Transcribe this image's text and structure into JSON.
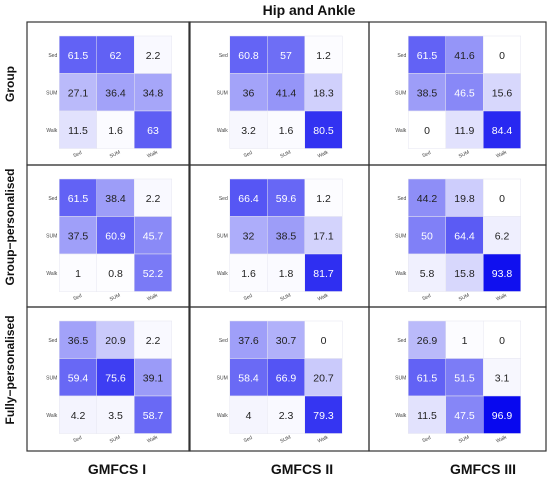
{
  "title": "Hip and Ankle",
  "row_labels": [
    "Group",
    "Group−personalised",
    "Fully−personalised"
  ],
  "col_labels": [
    "GMFCS I",
    "GMFCS II",
    "GMFCS III"
  ],
  "colors": {
    "low": "#ffffff",
    "high": "#0000ee",
    "border": "#333333"
  },
  "chart_data": {
    "type": "heatmap",
    "title": "Hip and Ankle",
    "color_range": [
      0,
      100
    ],
    "y_tick_labels": [
      "Sed",
      "SUM",
      "Walk"
    ],
    "x_tick_labels": [
      "Sed",
      "SUM",
      "Walk"
    ],
    "panels": [
      {
        "row": "Group",
        "col": "GMFCS I",
        "matrix": [
          [
            61.5,
            62,
            2.2
          ],
          [
            27.1,
            36.4,
            34.8
          ],
          [
            11.5,
            1.6,
            63
          ]
        ]
      },
      {
        "row": "Group",
        "col": "GMFCS II",
        "matrix": [
          [
            60.8,
            57,
            1.2
          ],
          [
            36,
            41.4,
            18.3
          ],
          [
            3.2,
            1.6,
            80.5
          ]
        ]
      },
      {
        "row": "Group",
        "col": "GMFCS III",
        "matrix": [
          [
            61.5,
            41.6,
            0
          ],
          [
            38.5,
            46.5,
            15.6
          ],
          [
            0,
            11.9,
            84.4
          ]
        ]
      },
      {
        "row": "Group−personalised",
        "col": "GMFCS I",
        "matrix": [
          [
            61.5,
            38.4,
            2.2
          ],
          [
            37.5,
            60.9,
            45.7
          ],
          [
            1,
            0.8,
            52.2
          ]
        ]
      },
      {
        "row": "Group−personalised",
        "col": "GMFCS II",
        "matrix": [
          [
            66.4,
            59.6,
            1.2
          ],
          [
            32,
            38.5,
            17.1
          ],
          [
            1.6,
            1.8,
            81.7
          ]
        ]
      },
      {
        "row": "Group−personalised",
        "col": "GMFCS III",
        "matrix": [
          [
            44.2,
            19.8,
            0
          ],
          [
            50,
            64.4,
            6.2
          ],
          [
            5.8,
            15.8,
            93.8
          ]
        ]
      },
      {
        "row": "Fully−personalised",
        "col": "GMFCS I",
        "matrix": [
          [
            36.5,
            20.9,
            2.2
          ],
          [
            59.4,
            75.6,
            39.1
          ],
          [
            4.2,
            3.5,
            58.7
          ]
        ]
      },
      {
        "row": "Fully−personalised",
        "col": "GMFCS II",
        "matrix": [
          [
            37.6,
            30.7,
            0
          ],
          [
            58.4,
            66.9,
            20.7
          ],
          [
            4,
            2.3,
            79.3
          ]
        ]
      },
      {
        "row": "Fully−personalised",
        "col": "GMFCS III",
        "matrix": [
          [
            26.9,
            1,
            0
          ],
          [
            61.5,
            51.5,
            3.1
          ],
          [
            11.5,
            47.5,
            96.9
          ]
        ]
      }
    ]
  }
}
